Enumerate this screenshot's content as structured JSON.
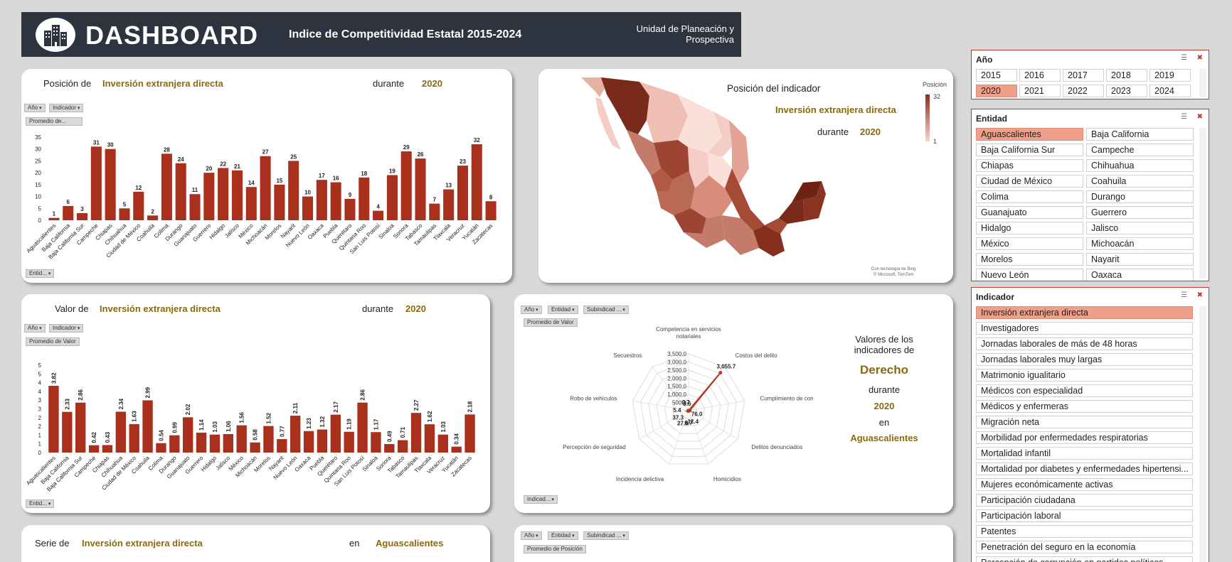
{
  "header": {
    "title": "DASHBOARD",
    "subtitle": "Indice de Competitividad Estatal 2015-2024",
    "unit": "Unidad de Planeación y Prospectiva"
  },
  "rank_card": {
    "prefix": "Posición de",
    "indicator": "Inversión extranjera directa",
    "during": "durante",
    "year": "2020",
    "filter_year": "Año",
    "filter_indicator": "Indicador",
    "field": "Promedio de...",
    "entity_filter": "Entid..."
  },
  "value_card": {
    "prefix": "Valor de",
    "indicator": "Inversión extranjera directa",
    "during": "durante",
    "year": "2020",
    "filter_year": "Año",
    "filter_indicator": "Indicador",
    "field": "Promedio de Valor",
    "entity_filter": "Entid..."
  },
  "map_card": {
    "title": "Posición del indicador",
    "indicator": "Inversión extranjera directa",
    "during": "durante",
    "year": "2020",
    "legend_title": "Posición",
    "legend_max": "32",
    "legend_min": "1",
    "credit1": "Con tecnología de Bing",
    "credit2": "© Microsoft, TomTom"
  },
  "radar_card": {
    "filter_year": "Año",
    "filter_entity": "Entidad",
    "filter_sub": "Subindicad ...",
    "field": "Promedio de Valor",
    "bottom_filter": "Indicad...",
    "side_title": "Valores de los indicadores de",
    "subindex": "Derecho",
    "during": "durante",
    "year": "2020",
    "in": "en",
    "entity": "Aguascalientes"
  },
  "series_card": {
    "prefix": "Serie de",
    "indicator": "Inversión extranjera directa",
    "in": "en",
    "entity": "Aguascalientes"
  },
  "bottom_right_card": {
    "filter_year": "Año",
    "filter_entity": "Entidad",
    "filter_sub": "Subindicad ...",
    "field": "Promedio de Posición"
  },
  "slicers": {
    "year": {
      "title": "Año",
      "items": [
        "2015",
        "2016",
        "2017",
        "2018",
        "2019",
        "2020",
        "2021",
        "2022",
        "2023",
        "2024"
      ],
      "selected": "2020"
    },
    "entity": {
      "title": "Entidad",
      "items": [
        "Aguascalientes",
        "Baja California",
        "Baja California Sur",
        "Campeche",
        "Chiapas",
        "Chihuahua",
        "Ciudad de México",
        "Coahuila",
        "Colima",
        "Durango",
        "Guanajuato",
        "Guerrero",
        "Hidalgo",
        "Jalisco",
        "México",
        "Michoacán",
        "Morelos",
        "Nayarit",
        "Nuevo León",
        "Oaxaca"
      ],
      "selected": "Aguascalientes"
    },
    "indicator": {
      "title": "Indicador",
      "items": [
        "Inversión extranjera directa",
        "Investigadores",
        "Jornadas laborales de más de 48 horas",
        "Jornadas laborales muy largas",
        "Matrimonio igualitario",
        "Médicos con especialidad",
        "Médicos y enfermeras",
        "Migración neta",
        "Morbilidad por enfermedades respiratorias",
        "Mortalidad infantil",
        "Mortalidad por diabetes y enfermedades hipertensi...",
        "Mujeres económicamente activas",
        "Participación ciudadana",
        "Participación laboral",
        "Patentes",
        "Penetración del seguro en la economía",
        "Percepción de corrupción en partidos políticos"
      ],
      "selected": "Inversión extranjera directa"
    }
  },
  "chart_data": [
    {
      "type": "bar",
      "categories": [
        "Aguascalientes",
        "Baja California",
        "Baja California Sur",
        "Campeche",
        "Chiapas",
        "Chihuahua",
        "Ciudad de México",
        "Coahuila",
        "Colima",
        "Durango",
        "Guanajuato",
        "Guerrero",
        "Hidalgo",
        "Jalisco",
        "México",
        "Michoacán",
        "Morelos",
        "Nayarit",
        "Nuevo León",
        "Oaxaca",
        "Puebla",
        "Querétaro",
        "Quintana Roo",
        "San Luis Potosí",
        "Sinaloa",
        "Sonora",
        "Tabasco",
        "Tamaulipas",
        "Tlaxcala",
        "Veracruz",
        "Yucatán",
        "Zacatecas"
      ],
      "values": [
        1,
        6,
        3,
        31,
        30,
        5,
        12,
        2,
        28,
        24,
        11,
        20,
        22,
        21,
        14,
        27,
        15,
        25,
        10,
        17,
        16,
        9,
        18,
        4,
        19,
        29,
        26,
        7,
        13,
        23,
        32,
        8
      ],
      "yticks": [
        "0",
        "5",
        "10",
        "15",
        "20",
        "25",
        "30",
        "35"
      ],
      "ylim": [
        0,
        35
      ],
      "color": "#a8301c"
    },
    {
      "type": "bar",
      "categories": [
        "Aguascalientes",
        "Baja California",
        "Baja California Sur",
        "Campeche",
        "Chiapas",
        "Chihuahua",
        "Ciudad de México",
        "Coahuila",
        "Colima",
        "Durango",
        "Guanajuato",
        "Guerrero",
        "Hidalgo",
        "Jalisco",
        "México",
        "Michoacán",
        "Morelos",
        "Nayarit",
        "Nuevo León",
        "Oaxaca",
        "Puebla",
        "Querétaro",
        "Quintana Roo",
        "San Luis Potosí",
        "Sinaloa",
        "Sonora",
        "Tabasco",
        "Tamaulipas",
        "Tlaxcala",
        "Veracruz",
        "Yucatán",
        "Zacatecas"
      ],
      "values": [
        3.82,
        2.33,
        2.86,
        0.42,
        0.43,
        2.34,
        1.63,
        2.99,
        0.54,
        0.99,
        2.02,
        1.14,
        1.03,
        1.06,
        1.56,
        0.58,
        1.52,
        0.77,
        2.11,
        1.23,
        1.32,
        2.17,
        1.19,
        2.86,
        1.17,
        0.49,
        0.71,
        2.27,
        1.62,
        1.03,
        0.34,
        2.18
      ],
      "labels": [
        "3.82",
        "2.33",
        "2.86",
        "0.42",
        "0.43",
        "2.34",
        "1.63",
        "2.99",
        "0.54",
        "0.99",
        "2.02",
        "1.14",
        "1.03",
        "1.06",
        "1.56",
        "0.58",
        "1.52",
        "0.77",
        "2.11",
        "1.23",
        "1.32",
        "2.17",
        "1.19",
        "2.86",
        "1.17",
        "0.49",
        "0.71",
        "2.27",
        "1.62",
        "1.03",
        "0.34",
        "2.18"
      ],
      "yticks": [
        "0",
        "1",
        "1",
        "2",
        "2",
        "3",
        "3",
        "4",
        "4",
        "5",
        "5"
      ],
      "ylim": [
        0,
        5
      ],
      "color": "#a8301c"
    },
    {
      "type": "radar",
      "axes": [
        "Competencia en servicios notariales",
        "Costos del delito",
        "Cumplimiento de contratos",
        "Delitos denunciados",
        "Homicidios",
        "Incidencia delictiva",
        "Percepción de seguridad",
        "Robo de vehículos",
        "Secuestros"
      ],
      "values": [
        0.7,
        3055.7,
        76.0,
        12.4,
        6.7,
        27.8,
        37.3,
        5.4,
        3.6
      ],
      "value_labels": [
        "0.7",
        "3,055.7",
        "76.0",
        "12.4",
        "6.7",
        "27.8",
        "37.3",
        "5.4",
        "3.6"
      ],
      "ticks": [
        "-",
        "500.0",
        "1,000.0",
        "1,500.0",
        "2,000.0",
        "2,500.0",
        "3,000.0",
        "3,500.0"
      ],
      "rmax": 3500,
      "color": "#b03a24"
    }
  ]
}
